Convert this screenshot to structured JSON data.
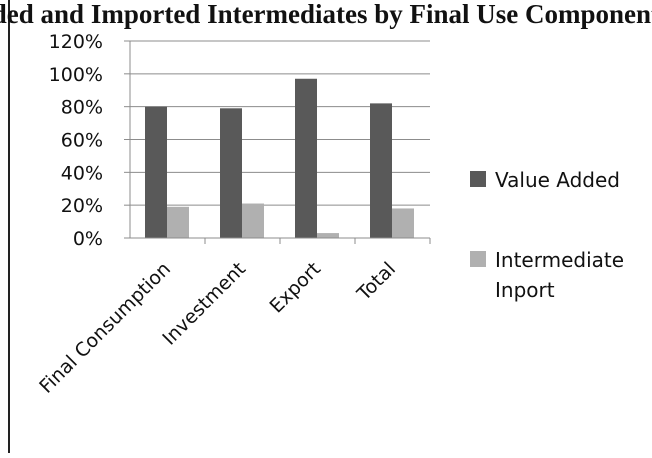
{
  "chart_data": {
    "type": "bar",
    "title": "ue Added and Imported Intermediates by Final Use Component",
    "categories": [
      "Final Consumption",
      "Investment",
      "Export",
      "Total"
    ],
    "series": [
      {
        "name": "Value Added",
        "values": [
          80,
          79,
          97,
          82
        ],
        "color": "#595959"
      },
      {
        "name": "Intermediate Inport",
        "values": [
          19,
          21,
          3,
          18
        ],
        "color": "#b0b0b0"
      }
    ],
    "yticks": [
      "0%",
      "20%",
      "40%",
      "60%",
      "80%",
      "100%",
      "120%"
    ],
    "ylim": [
      0,
      120
    ],
    "grid": true,
    "legend_position": "right"
  }
}
